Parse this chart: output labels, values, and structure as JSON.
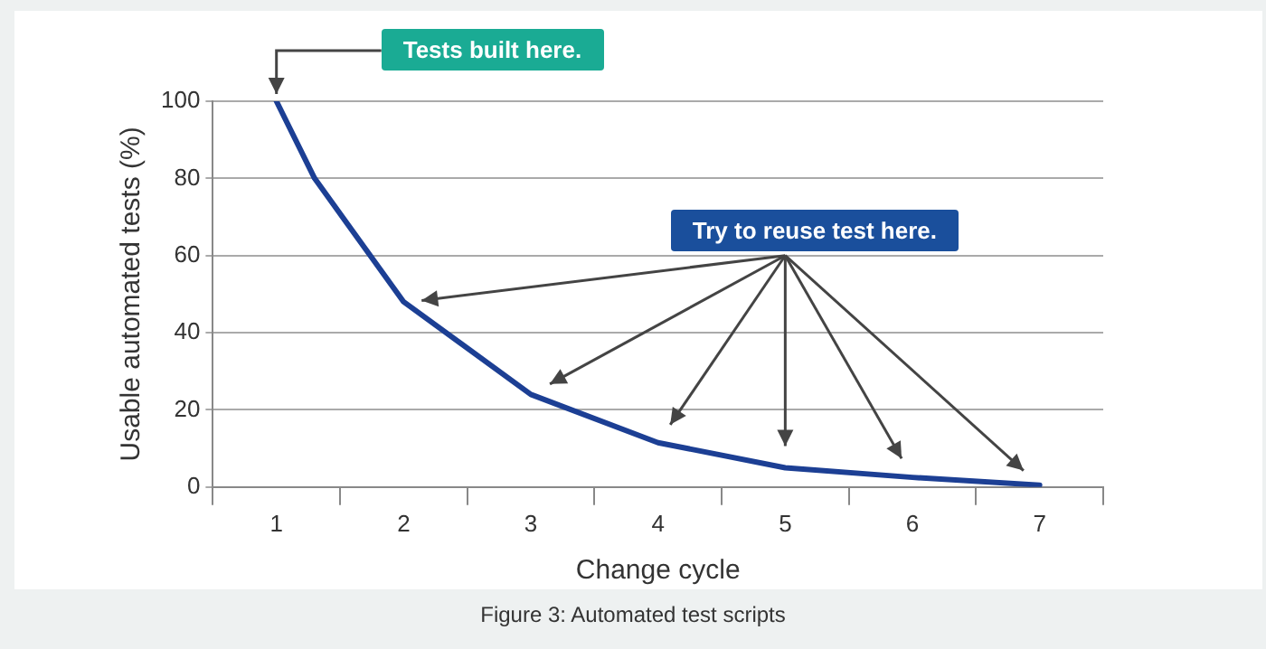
{
  "chart_data": {
    "type": "line",
    "xlabel": "Change cycle",
    "ylabel": "Usable automated tests (%)",
    "x": [
      1,
      1.3,
      2,
      3,
      4,
      5,
      6,
      7
    ],
    "series": [
      {
        "color": "#1c3f94",
        "values": [
          100,
          80,
          48,
          24,
          11.5,
          5,
          2.5,
          0.5
        ]
      }
    ],
    "xlim": [
      0.5,
      7.5
    ],
    "xticks": [
      {
        "value": 0.5,
        "label": null
      },
      1,
      {
        "value": 1.5,
        "label": null
      },
      2,
      {
        "value": 2.5,
        "label": null
      },
      3,
      {
        "value": 3.5,
        "label": null
      },
      4,
      {
        "value": 4.5,
        "label": null
      },
      5,
      {
        "value": 5.5,
        "label": null
      },
      6,
      {
        "value": 6.5,
        "label": null
      },
      7,
      {
        "value": 7.5,
        "label": null
      }
    ],
    "ylim": [
      0,
      100
    ],
    "yticks": [
      0,
      20,
      40,
      60,
      80,
      100
    ],
    "grid": "y",
    "legend": false,
    "marker": "none",
    "line_style": "solid",
    "annotations": [
      {
        "text": "Tests built here.",
        "x": 1,
        "y": 100
      },
      "Try to reuse test here.",
      "Figure 3: Automated test scripts"
    ]
  }
}
